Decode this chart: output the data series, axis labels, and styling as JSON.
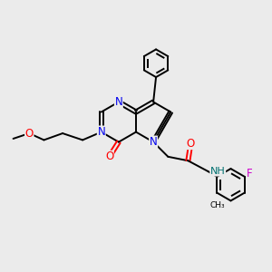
{
  "background_color": "#ebebeb",
  "atom_colors": {
    "N": "#0000ee",
    "O": "#ff0000",
    "F": "#cc00cc",
    "H": "#007070",
    "C": "#000000"
  },
  "bond_color": "#000000",
  "bond_width": 1.4,
  "font_size_atom": 8.5,
  "bg": "#ebebeb"
}
